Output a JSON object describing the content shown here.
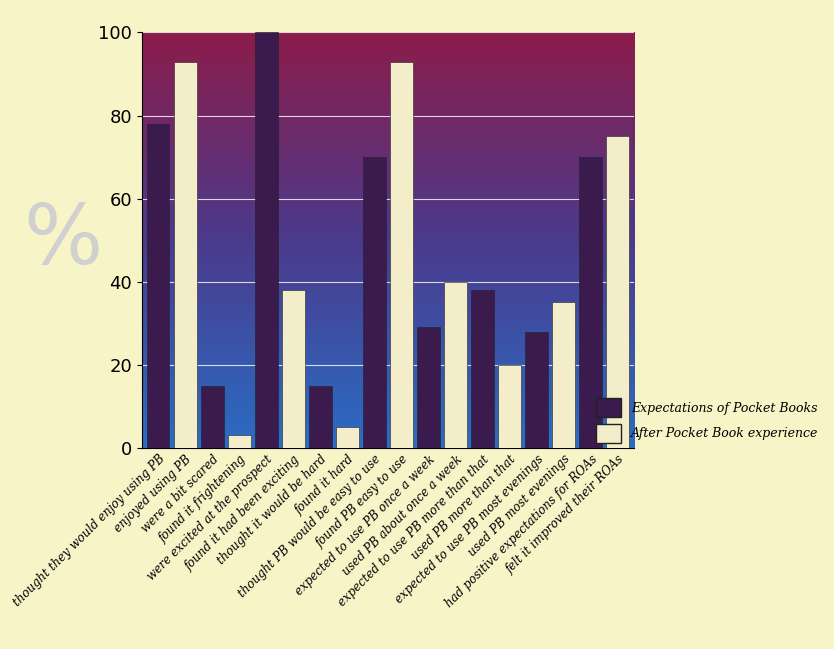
{
  "chart_data": {
    "type": "bar",
    "ylabel": "%",
    "categories": [
      "thought they would enjoy using PB",
      "enjoyed using PB",
      "were a bit scared",
      "found it frightening",
      "were excited at the prospect",
      "found it had been exciting",
      "thought it would be hard",
      "found it hard",
      "thought PB would be easy to use",
      "found PB easy to use",
      "expected to use PB once a week",
      "used PB about once a week",
      "expected to use PB more than that",
      "used PB more than that",
      "expected to use PB most evenings",
      "used PB most evenings",
      "had positive expectations for ROAs",
      "felt it improved their ROAs"
    ],
    "series": [
      {
        "name": "Expectations of Pocket Books",
        "color": "#3b1a4e",
        "values": [
          78,
          null,
          15,
          null,
          100,
          null,
          15,
          null,
          70,
          null,
          29,
          null,
          38,
          null,
          28,
          null,
          70,
          null
        ]
      },
      {
        "name": "After Pocket Book experience",
        "color": "#f3edca",
        "values": [
          null,
          93,
          null,
          3,
          null,
          38,
          null,
          5,
          null,
          93,
          null,
          40,
          null,
          20,
          null,
          35,
          null,
          75
        ]
      }
    ],
    "ylim": [
      0,
      100
    ],
    "yticks": [
      0,
      20,
      40,
      60,
      80,
      100
    ],
    "grid": true,
    "legend": "lower right"
  }
}
